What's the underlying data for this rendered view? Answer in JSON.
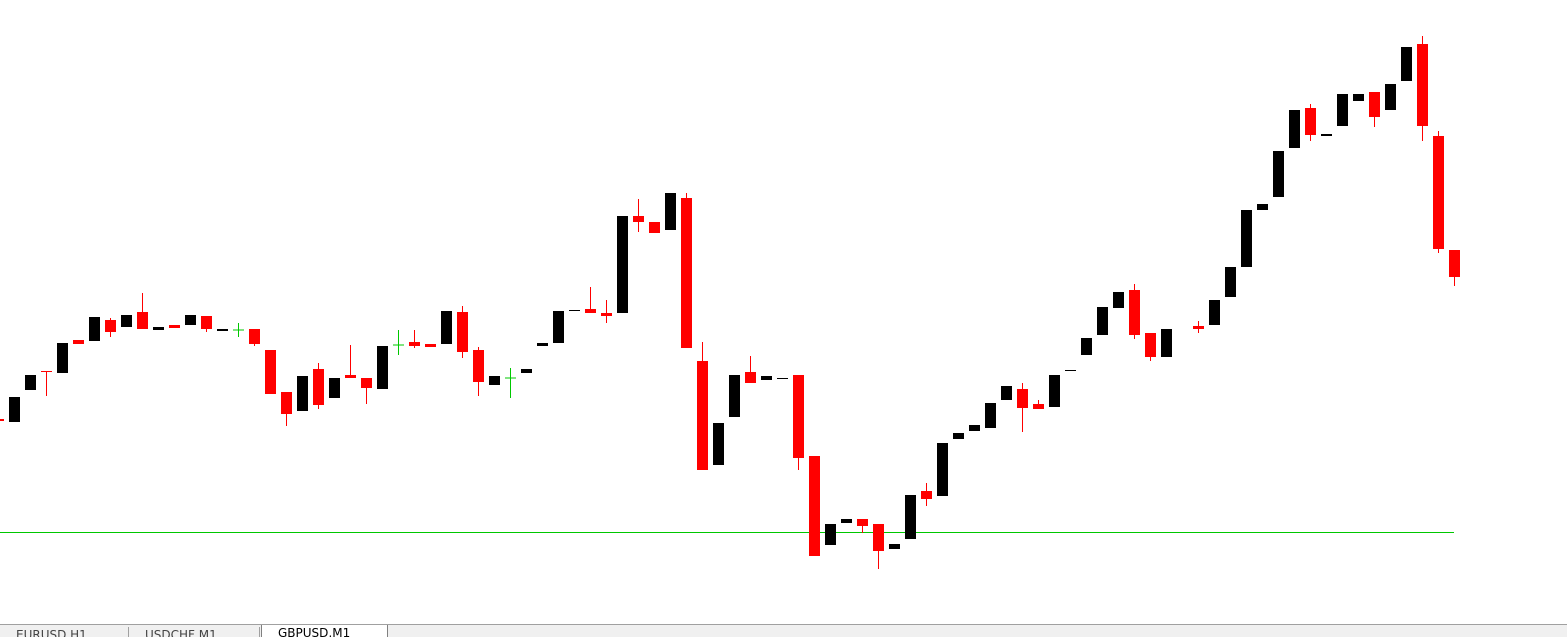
{
  "chart_data": {
    "type": "candlestick",
    "open": [
      201,
      198,
      230,
      249,
      247,
      280,
      279,
      300,
      293,
      308,
      290,
      295,
      295,
      304,
      289,
      290,
      291,
      270,
      228,
      209,
      251,
      222,
      245,
      242,
      231,
      275,
      278,
      276,
      276,
      308,
      270,
      235,
      242,
      247,
      274,
      277,
      309,
      311,
      307,
      307,
      404,
      398,
      390,
      422,
      259,
      155,
      203,
      248,
      240,
      241,
      245,
      164,
      75,
      97,
      101,
      96,
      71,
      81,
      129,
      124,
      181,
      189,
      192,
      220,
      231,
      216,
      213,
      249,
      265,
      285,
      312,
      330,
      287,
      263,
      null,
      294,
      295,
      323,
      353,
      410,
      423,
      472,
      512,
      484,
      494,
      519,
      528,
      510,
      539,
      576,
      484,
      370
    ],
    "high": [
      201,
      223,
      245,
      249,
      277,
      280,
      303,
      302,
      305,
      327,
      293,
      295,
      305,
      304,
      291,
      297,
      291,
      270,
      228,
      244,
      257,
      242,
      275,
      242,
      274,
      290,
      290,
      276,
      309,
      314,
      273,
      244,
      252,
      251,
      277,
      309,
      310,
      333,
      320,
      404,
      421,
      398,
      427,
      427,
      278,
      197,
      245,
      264,
      244,
      242,
      245,
      164,
      96,
      101,
      101,
      96,
      76,
      125,
      137,
      177,
      187,
      195,
      217,
      234,
      237,
      220,
      245,
      250,
      282,
      313,
      328,
      336,
      287,
      291,
      null,
      299,
      320,
      353,
      410,
      416,
      469,
      510,
      516,
      486,
      526,
      526,
      528,
      536,
      573,
      584,
      489,
      370
    ],
    "low": [
      199,
      198,
      230,
      224,
      247,
      276,
      279,
      283,
      293,
      291,
      290,
      292,
      295,
      288,
      289,
      283,
      274,
      226,
      194,
      209,
      211,
      222,
      242,
      216,
      231,
      265,
      272,
      273,
      276,
      262,
      224,
      235,
      222,
      247,
      274,
      277,
      309,
      307,
      297,
      307,
      388,
      387,
      390,
      272,
      150,
      155,
      203,
      237,
      240,
      241,
      150,
      64,
      75,
      97,
      87,
      51,
      71,
      81,
      114,
      124,
      181,
      189,
      192,
      220,
      188,
      211,
      213,
      249,
      265,
      285,
      312,
      281,
      259,
      263,
      null,
      287,
      295,
      323,
      353,
      410,
      423,
      472,
      479,
      484,
      494,
      519,
      493,
      510,
      539,
      479,
      367,
      334
    ],
    "close": [
      199,
      223,
      245,
      248,
      277,
      276,
      303,
      288,
      305,
      291,
      293,
      292,
      305,
      291,
      291,
      290,
      276,
      226,
      206,
      244,
      215,
      242,
      242,
      232,
      274,
      275,
      274,
      273,
      309,
      268,
      238,
      244,
      242,
      251,
      277,
      309,
      310,
      307,
      304,
      404,
      398,
      387,
      427,
      272,
      150,
      197,
      245,
      237,
      244,
      242,
      162,
      64,
      96,
      101,
      94,
      69,
      76,
      125,
      121,
      177,
      187,
      195,
      217,
      234,
      212,
      211,
      245,
      250,
      282,
      313,
      328,
      285,
      263,
      291,
      null,
      291,
      320,
      353,
      410,
      416,
      469,
      510,
      485,
      486,
      526,
      526,
      503,
      536,
      573,
      494,
      371,
      343
    ],
    "level": 88,
    "ylim": [
      0,
      620
    ],
    "bull_color": "#000000",
    "bear_color": "#ff0000",
    "doji_color": "#00c800",
    "level_color": "#00c800"
  },
  "tabs": [
    "EURUSD,H1",
    "USDCHF,M1",
    "GBPUSD,M1"
  ]
}
